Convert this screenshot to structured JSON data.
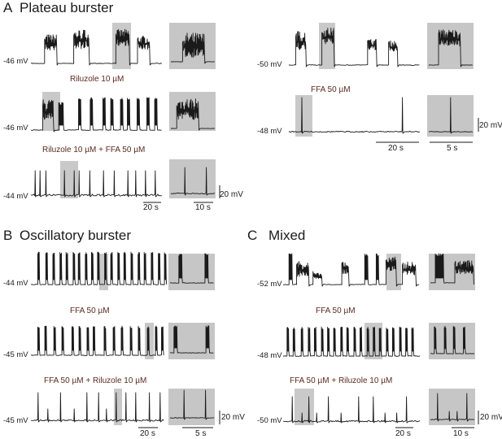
{
  "panels": {
    "A": {
      "letter": "A",
      "title": "Plateau burster"
    },
    "B": {
      "letter": "B",
      "title": "Oscillatory burster"
    },
    "C": {
      "letter": "C",
      "title": "Mixed"
    }
  },
  "conditions": {
    "a_l2": "Riluzole 10 µM",
    "a_l3": "Riluzole 10 µM + FFA 50 µM",
    "a_r2": "FFA 50 µM",
    "b2": "FFA 50 µM",
    "b3": "FFA 50 µM + Riluzole 10 µM",
    "c2": "FFA 50 µM",
    "c3": "FFA 50 µM + Riluzole 10 µM"
  },
  "voltages": {
    "a_l1": "-46 mV",
    "a_l2": "-46 mV",
    "a_l3": "-44 mV",
    "a_r1": "-50 mV",
    "a_r2": "-48 mV",
    "b1": "-44 mV",
    "b2": "-45 mV",
    "b3": "-45 mV",
    "c1": "-52 mV",
    "c2": "-48 mV",
    "c3": "-50 mV"
  },
  "scalebars": {
    "a_left_time": "20 s",
    "a_left_inset": "10 s",
    "a_left_volt": "20 mV",
    "a_right_time": "20 s",
    "a_right_inset": "5 s",
    "a_right_volt": "20 mV",
    "b_time": "20 s",
    "b_inset": "5 s",
    "b_volt": "20 mV",
    "c_time": "20 s",
    "c_inset": "10 s",
    "c_volt": "20 mV"
  },
  "colors": {
    "trace": "#1a1a1a",
    "highlight": "#c9c9c9",
    "inset_bg": "#c6c6c6",
    "condition_text": "#5a2a20"
  }
}
